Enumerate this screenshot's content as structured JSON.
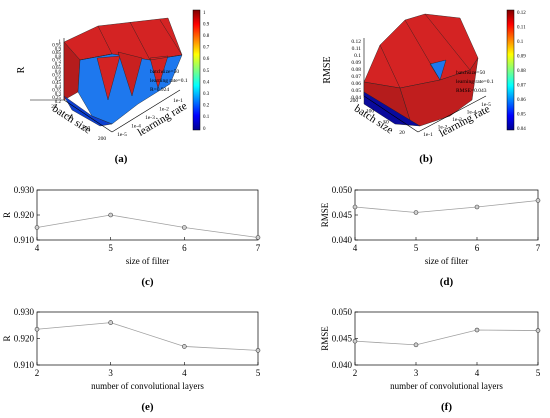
{
  "panel_labels": [
    "(a)",
    "(b)",
    "(c)",
    "(d)",
    "(e)",
    "(f)"
  ],
  "colors": {
    "surface_high": "#d42323",
    "surface_low": "#1e78ee",
    "surface_min": "#0a0a9c",
    "line": "#a0a0a0",
    "marker_fill": "#d0d0d0",
    "axis": "#000000"
  },
  "chart_data": [
    {
      "id": "a",
      "type": "surface3d",
      "zlabel": "R",
      "xlabel": "batch size",
      "ylabel": "learning rate",
      "ztick_labels": [
        "1",
        "0.95",
        "0.9",
        "0.85",
        "0.8",
        "0.75",
        "0.7",
        "0.65",
        "0.6",
        "0.55",
        "0.5",
        "0.45",
        "0.4",
        "0.35",
        "0.3",
        "0.25",
        "0.2"
      ],
      "batch_tick_labels": [
        "25",
        "50",
        "100",
        "200"
      ],
      "lr_tick_labels": [
        "1e-5",
        "1e-4",
        "1e-3",
        "1e-2",
        "1e-1"
      ],
      "annotation": [
        "batchsize=50",
        "learning rate=0.1",
        "R=0.924"
      ],
      "colorbar": {
        "min": 0,
        "max": 1,
        "tick_labels": [
          "1",
          "0.9",
          "0.8",
          "0.7",
          "0.6",
          "0.5",
          "0.4",
          "0.3",
          "0.2",
          "0.1",
          "0"
        ]
      }
    },
    {
      "id": "b",
      "type": "surface3d",
      "zlabel": "RMSE",
      "xlabel": "batch size",
      "ylabel": "learning rate",
      "ztick_labels": [
        "0.12",
        "0.11",
        "0.1",
        "0.09",
        "0.08",
        "0.07",
        "0.06",
        "0.05",
        "0.04"
      ],
      "batch_tick_labels": [
        "200",
        "100",
        "50",
        "20"
      ],
      "lr_tick_labels": [
        "1e-1",
        "1e-2",
        "1e-3",
        "1e-4",
        "1e-5"
      ],
      "annotation": [
        "batchsize=50",
        "learning rate=0.1",
        "RMSE=0.043"
      ],
      "colorbar": {
        "min": 0.04,
        "max": 0.12,
        "tick_labels": [
          "0.12",
          "0.11",
          "0.1",
          "0.09",
          "0.08",
          "0.07",
          "0.06",
          "0.05",
          "0.04"
        ]
      }
    },
    {
      "id": "c",
      "type": "line",
      "xlabel": "size of filter",
      "ylabel": "R",
      "x": [
        4,
        5,
        6,
        7
      ],
      "y": [
        0.915,
        0.92,
        0.915,
        0.911
      ],
      "xlim": [
        4,
        7
      ],
      "ylim": [
        0.91,
        0.93
      ],
      "yticks": [
        0.91,
        0.92,
        0.93
      ],
      "ytick_labels": [
        "0.910",
        "0.920",
        "0.930"
      ],
      "xtick_labels": [
        "4",
        "5",
        "6",
        "7"
      ]
    },
    {
      "id": "d",
      "type": "line",
      "xlabel": "size of filter",
      "ylabel": "RMSE",
      "x": [
        4,
        5,
        6,
        7
      ],
      "y": [
        0.0466,
        0.0455,
        0.0466,
        0.0479
      ],
      "xlim": [
        4,
        7
      ],
      "ylim": [
        0.04,
        0.05
      ],
      "yticks": [
        0.04,
        0.045,
        0.05
      ],
      "ytick_labels": [
        "0.040",
        "0.045",
        "0.050"
      ],
      "xtick_labels": [
        "4",
        "5",
        "6",
        "7"
      ]
    },
    {
      "id": "e",
      "type": "line",
      "xlabel": "number of convolutional layers",
      "ylabel": "R",
      "x": [
        2,
        3,
        4,
        5
      ],
      "y": [
        0.9235,
        0.926,
        0.917,
        0.9155
      ],
      "xlim": [
        2,
        5
      ],
      "ylim": [
        0.91,
        0.93
      ],
      "yticks": [
        0.91,
        0.92,
        0.93
      ],
      "ytick_labels": [
        "0.910",
        "0.920",
        "0.930"
      ],
      "xtick_labels": [
        "2",
        "3",
        "4",
        "5"
      ]
    },
    {
      "id": "f",
      "type": "line",
      "xlabel": "number of convolutional layers",
      "ylabel": "RMSE",
      "x": [
        2,
        3,
        4,
        5
      ],
      "y": [
        0.0445,
        0.0438,
        0.0466,
        0.0465
      ],
      "xlim": [
        2,
        5
      ],
      "ylim": [
        0.04,
        0.05
      ],
      "yticks": [
        0.04,
        0.045,
        0.05
      ],
      "ytick_labels": [
        "0.040",
        "0.045",
        "0.050"
      ],
      "xtick_labels": [
        "2",
        "3",
        "4",
        "5"
      ]
    }
  ]
}
